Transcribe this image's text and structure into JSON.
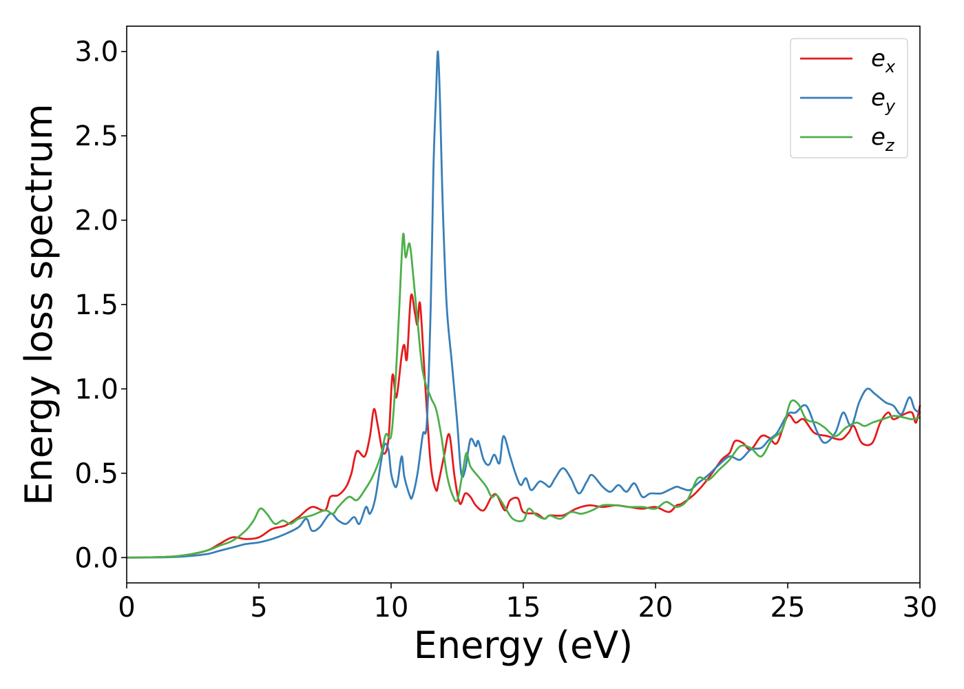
{
  "chart_data": {
    "type": "line",
    "title": "",
    "xlabel": "Energy (eV)",
    "ylabel": "Energy loss spectrum",
    "xlim": [
      0,
      30
    ],
    "ylim": [
      -0.15,
      3.15
    ],
    "x_ticks": [
      0,
      5,
      10,
      15,
      20,
      25,
      30
    ],
    "x_tick_labels": [
      "0",
      "5",
      "10",
      "15",
      "20",
      "25",
      "30"
    ],
    "y_ticks": [
      0.0,
      0.5,
      1.0,
      1.5,
      2.0,
      2.5,
      3.0
    ],
    "y_tick_labels": [
      "0.0",
      "0.5",
      "1.0",
      "1.5",
      "2.0",
      "2.5",
      "3.0"
    ],
    "grid": false,
    "legend_position": "top-right",
    "series": [
      {
        "name": "e_x",
        "legend_base": "e",
        "legend_sub": "x",
        "color": "#e41a1c",
        "points": [
          [
            0,
            0
          ],
          [
            1,
            0.002
          ],
          [
            2,
            0.01
          ],
          [
            3,
            0.04
          ],
          [
            3.5,
            0.08
          ],
          [
            4,
            0.12
          ],
          [
            4.5,
            0.11
          ],
          [
            5,
            0.12
          ],
          [
            5.5,
            0.17
          ],
          [
            6,
            0.19
          ],
          [
            6.5,
            0.24
          ],
          [
            7,
            0.3
          ],
          [
            7.5,
            0.28
          ],
          [
            7.7,
            0.36
          ],
          [
            8,
            0.37
          ],
          [
            8.3,
            0.42
          ],
          [
            8.5,
            0.5
          ],
          [
            8.7,
            0.63
          ],
          [
            9,
            0.6
          ],
          [
            9.2,
            0.72
          ],
          [
            9.35,
            0.88
          ],
          [
            9.5,
            0.78
          ],
          [
            9.7,
            0.62
          ],
          [
            9.9,
            0.7
          ],
          [
            10.05,
            1.08
          ],
          [
            10.2,
            0.95
          ],
          [
            10.4,
            1.2
          ],
          [
            10.5,
            1.26
          ],
          [
            10.6,
            1.18
          ],
          [
            10.75,
            1.55
          ],
          [
            10.9,
            1.45
          ],
          [
            11,
            1.38
          ],
          [
            11.1,
            1.5
          ],
          [
            11.3,
            1.0
          ],
          [
            11.5,
            0.55
          ],
          [
            11.7,
            0.4
          ],
          [
            11.8,
            0.45
          ],
          [
            12,
            0.6
          ],
          [
            12.2,
            0.73
          ],
          [
            12.4,
            0.48
          ],
          [
            12.6,
            0.32
          ],
          [
            12.8,
            0.38
          ],
          [
            13,
            0.36
          ],
          [
            13.2,
            0.31
          ],
          [
            13.5,
            0.28
          ],
          [
            13.8,
            0.36
          ],
          [
            14,
            0.37
          ],
          [
            14.3,
            0.28
          ],
          [
            14.5,
            0.34
          ],
          [
            14.8,
            0.35
          ],
          [
            15,
            0.27
          ],
          [
            15.5,
            0.26
          ],
          [
            15.8,
            0.23
          ],
          [
            16,
            0.25
          ],
          [
            16.5,
            0.25
          ],
          [
            17,
            0.29
          ],
          [
            17.5,
            0.31
          ],
          [
            18,
            0.3
          ],
          [
            18.5,
            0.31
          ],
          [
            19,
            0.3
          ],
          [
            19.5,
            0.29
          ],
          [
            20,
            0.3
          ],
          [
            20.5,
            0.27
          ],
          [
            20.8,
            0.31
          ],
          [
            21,
            0.32
          ],
          [
            21.5,
            0.38
          ],
          [
            22,
            0.47
          ],
          [
            22.5,
            0.58
          ],
          [
            22.8,
            0.62
          ],
          [
            23,
            0.69
          ],
          [
            23.3,
            0.68
          ],
          [
            23.6,
            0.64
          ],
          [
            24,
            0.72
          ],
          [
            24.3,
            0.71
          ],
          [
            24.6,
            0.68
          ],
          [
            25,
            0.84
          ],
          [
            25.3,
            0.8
          ],
          [
            25.6,
            0.82
          ],
          [
            26,
            0.74
          ],
          [
            26.5,
            0.72
          ],
          [
            27,
            0.7
          ],
          [
            27.3,
            0.74
          ],
          [
            27.5,
            0.78
          ],
          [
            27.8,
            0.68
          ],
          [
            28.2,
            0.68
          ],
          [
            28.5,
            0.8
          ],
          [
            28.8,
            0.86
          ],
          [
            29,
            0.82
          ],
          [
            29.4,
            0.85
          ],
          [
            29.7,
            0.86
          ],
          [
            29.85,
            0.8
          ],
          [
            30,
            0.9
          ]
        ]
      },
      {
        "name": "e_y",
        "legend_base": "e",
        "legend_sub": "y",
        "color": "#377eb8",
        "points": [
          [
            0,
            0
          ],
          [
            1,
            0.001
          ],
          [
            2,
            0.005
          ],
          [
            3,
            0.02
          ],
          [
            3.5,
            0.04
          ],
          [
            4,
            0.06
          ],
          [
            4.5,
            0.08
          ],
          [
            5,
            0.09
          ],
          [
            5.5,
            0.11
          ],
          [
            6,
            0.14
          ],
          [
            6.5,
            0.18
          ],
          [
            6.8,
            0.23
          ],
          [
            7,
            0.16
          ],
          [
            7.3,
            0.18
          ],
          [
            7.7,
            0.26
          ],
          [
            8,
            0.22
          ],
          [
            8.3,
            0.2
          ],
          [
            8.6,
            0.24
          ],
          [
            8.8,
            0.2
          ],
          [
            9.05,
            0.3
          ],
          [
            9.2,
            0.26
          ],
          [
            9.4,
            0.35
          ],
          [
            9.6,
            0.55
          ],
          [
            9.75,
            0.67
          ],
          [
            9.9,
            0.64
          ],
          [
            10,
            0.5
          ],
          [
            10.15,
            0.42
          ],
          [
            10.25,
            0.45
          ],
          [
            10.4,
            0.6
          ],
          [
            10.5,
            0.48
          ],
          [
            10.7,
            0.37
          ],
          [
            10.8,
            0.36
          ],
          [
            11,
            0.5
          ],
          [
            11.2,
            0.73
          ],
          [
            11.35,
            0.8
          ],
          [
            11.5,
            1.5
          ],
          [
            11.6,
            2.3
          ],
          [
            11.7,
            2.75
          ],
          [
            11.77,
            3.0
          ],
          [
            11.85,
            2.7
          ],
          [
            11.95,
            2.1
          ],
          [
            12.1,
            1.5
          ],
          [
            12.3,
            1.15
          ],
          [
            12.5,
            0.8
          ],
          [
            12.65,
            0.5
          ],
          [
            12.8,
            0.52
          ],
          [
            13,
            0.7
          ],
          [
            13.2,
            0.66
          ],
          [
            13.3,
            0.69
          ],
          [
            13.5,
            0.58
          ],
          [
            13.7,
            0.55
          ],
          [
            13.9,
            0.61
          ],
          [
            14.1,
            0.56
          ],
          [
            14.25,
            0.72
          ],
          [
            14.5,
            0.6
          ],
          [
            14.7,
            0.5
          ],
          [
            14.9,
            0.43
          ],
          [
            15.1,
            0.47
          ],
          [
            15.3,
            0.4
          ],
          [
            15.6,
            0.45
          ],
          [
            15.8,
            0.44
          ],
          [
            16,
            0.42
          ],
          [
            16.2,
            0.47
          ],
          [
            16.5,
            0.53
          ],
          [
            16.8,
            0.47
          ],
          [
            17.1,
            0.38
          ],
          [
            17.4,
            0.45
          ],
          [
            17.6,
            0.49
          ],
          [
            18,
            0.42
          ],
          [
            18.3,
            0.39
          ],
          [
            18.6,
            0.43
          ],
          [
            18.9,
            0.39
          ],
          [
            19.2,
            0.44
          ],
          [
            19.5,
            0.36
          ],
          [
            19.8,
            0.38
          ],
          [
            20.2,
            0.38
          ],
          [
            20.5,
            0.4
          ],
          [
            20.8,
            0.42
          ],
          [
            21,
            0.41
          ],
          [
            21.3,
            0.4
          ],
          [
            21.6,
            0.44
          ],
          [
            22,
            0.49
          ],
          [
            22.4,
            0.55
          ],
          [
            22.8,
            0.6
          ],
          [
            23.2,
            0.58
          ],
          [
            23.6,
            0.64
          ],
          [
            24,
            0.65
          ],
          [
            24.3,
            0.7
          ],
          [
            24.6,
            0.74
          ],
          [
            25,
            0.85
          ],
          [
            25.3,
            0.86
          ],
          [
            25.7,
            0.9
          ],
          [
            26.1,
            0.75
          ],
          [
            26.4,
            0.68
          ],
          [
            26.8,
            0.74
          ],
          [
            27.1,
            0.86
          ],
          [
            27.4,
            0.78
          ],
          [
            27.7,
            0.92
          ],
          [
            28,
            1.0
          ],
          [
            28.3,
            0.97
          ],
          [
            28.7,
            0.92
          ],
          [
            29,
            0.9
          ],
          [
            29.3,
            0.85
          ],
          [
            29.6,
            0.95
          ],
          [
            29.8,
            0.88
          ],
          [
            30,
            0.86
          ]
        ]
      },
      {
        "name": "e_z",
        "legend_base": "e",
        "legend_sub": "z",
        "color": "#4daf4a",
        "points": [
          [
            0,
            0
          ],
          [
            1,
            0.002
          ],
          [
            2,
            0.01
          ],
          [
            3,
            0.04
          ],
          [
            3.5,
            0.07
          ],
          [
            4,
            0.1
          ],
          [
            4.5,
            0.16
          ],
          [
            4.8,
            0.22
          ],
          [
            5.05,
            0.29
          ],
          [
            5.3,
            0.26
          ],
          [
            5.6,
            0.2
          ],
          [
            5.9,
            0.22
          ],
          [
            6.2,
            0.2
          ],
          [
            6.5,
            0.23
          ],
          [
            7,
            0.25
          ],
          [
            7.5,
            0.28
          ],
          [
            7.8,
            0.26
          ],
          [
            8,
            0.3
          ],
          [
            8.4,
            0.36
          ],
          [
            8.7,
            0.34
          ],
          [
            9,
            0.4
          ],
          [
            9.3,
            0.48
          ],
          [
            9.6,
            0.6
          ],
          [
            9.8,
            0.73
          ],
          [
            10,
            0.72
          ],
          [
            10.15,
            1.0
          ],
          [
            10.3,
            1.45
          ],
          [
            10.45,
            1.91
          ],
          [
            10.55,
            1.78
          ],
          [
            10.7,
            1.86
          ],
          [
            10.85,
            1.65
          ],
          [
            11,
            1.4
          ],
          [
            11.2,
            1.1
          ],
          [
            11.5,
            0.95
          ],
          [
            11.7,
            0.88
          ],
          [
            11.9,
            0.72
          ],
          [
            12.1,
            0.5
          ],
          [
            12.3,
            0.38
          ],
          [
            12.5,
            0.34
          ],
          [
            12.7,
            0.5
          ],
          [
            12.85,
            0.62
          ],
          [
            13,
            0.54
          ],
          [
            13.3,
            0.48
          ],
          [
            13.6,
            0.42
          ],
          [
            13.8,
            0.36
          ],
          [
            14,
            0.37
          ],
          [
            14.3,
            0.3
          ],
          [
            14.6,
            0.23
          ],
          [
            15,
            0.22
          ],
          [
            15.2,
            0.29
          ],
          [
            15.5,
            0.25
          ],
          [
            15.8,
            0.23
          ],
          [
            16,
            0.25
          ],
          [
            16.4,
            0.23
          ],
          [
            16.8,
            0.27
          ],
          [
            17.2,
            0.26
          ],
          [
            17.6,
            0.28
          ],
          [
            18,
            0.31
          ],
          [
            18.5,
            0.31
          ],
          [
            19,
            0.3
          ],
          [
            19.5,
            0.3
          ],
          [
            20,
            0.29
          ],
          [
            20.4,
            0.33
          ],
          [
            20.8,
            0.3
          ],
          [
            21.2,
            0.34
          ],
          [
            21.6,
            0.47
          ],
          [
            22,
            0.46
          ],
          [
            22.4,
            0.52
          ],
          [
            22.8,
            0.58
          ],
          [
            23.2,
            0.66
          ],
          [
            23.6,
            0.65
          ],
          [
            24,
            0.6
          ],
          [
            24.4,
            0.7
          ],
          [
            24.8,
            0.76
          ],
          [
            25.1,
            0.92
          ],
          [
            25.4,
            0.91
          ],
          [
            25.7,
            0.82
          ],
          [
            26.1,
            0.8
          ],
          [
            26.4,
            0.77
          ],
          [
            26.8,
            0.72
          ],
          [
            27.2,
            0.77
          ],
          [
            27.6,
            0.8
          ],
          [
            27.9,
            0.78
          ],
          [
            28.2,
            0.8
          ],
          [
            28.6,
            0.82
          ],
          [
            29,
            0.84
          ],
          [
            29.4,
            0.83
          ],
          [
            29.7,
            0.82
          ],
          [
            30,
            0.83
          ]
        ]
      }
    ]
  }
}
